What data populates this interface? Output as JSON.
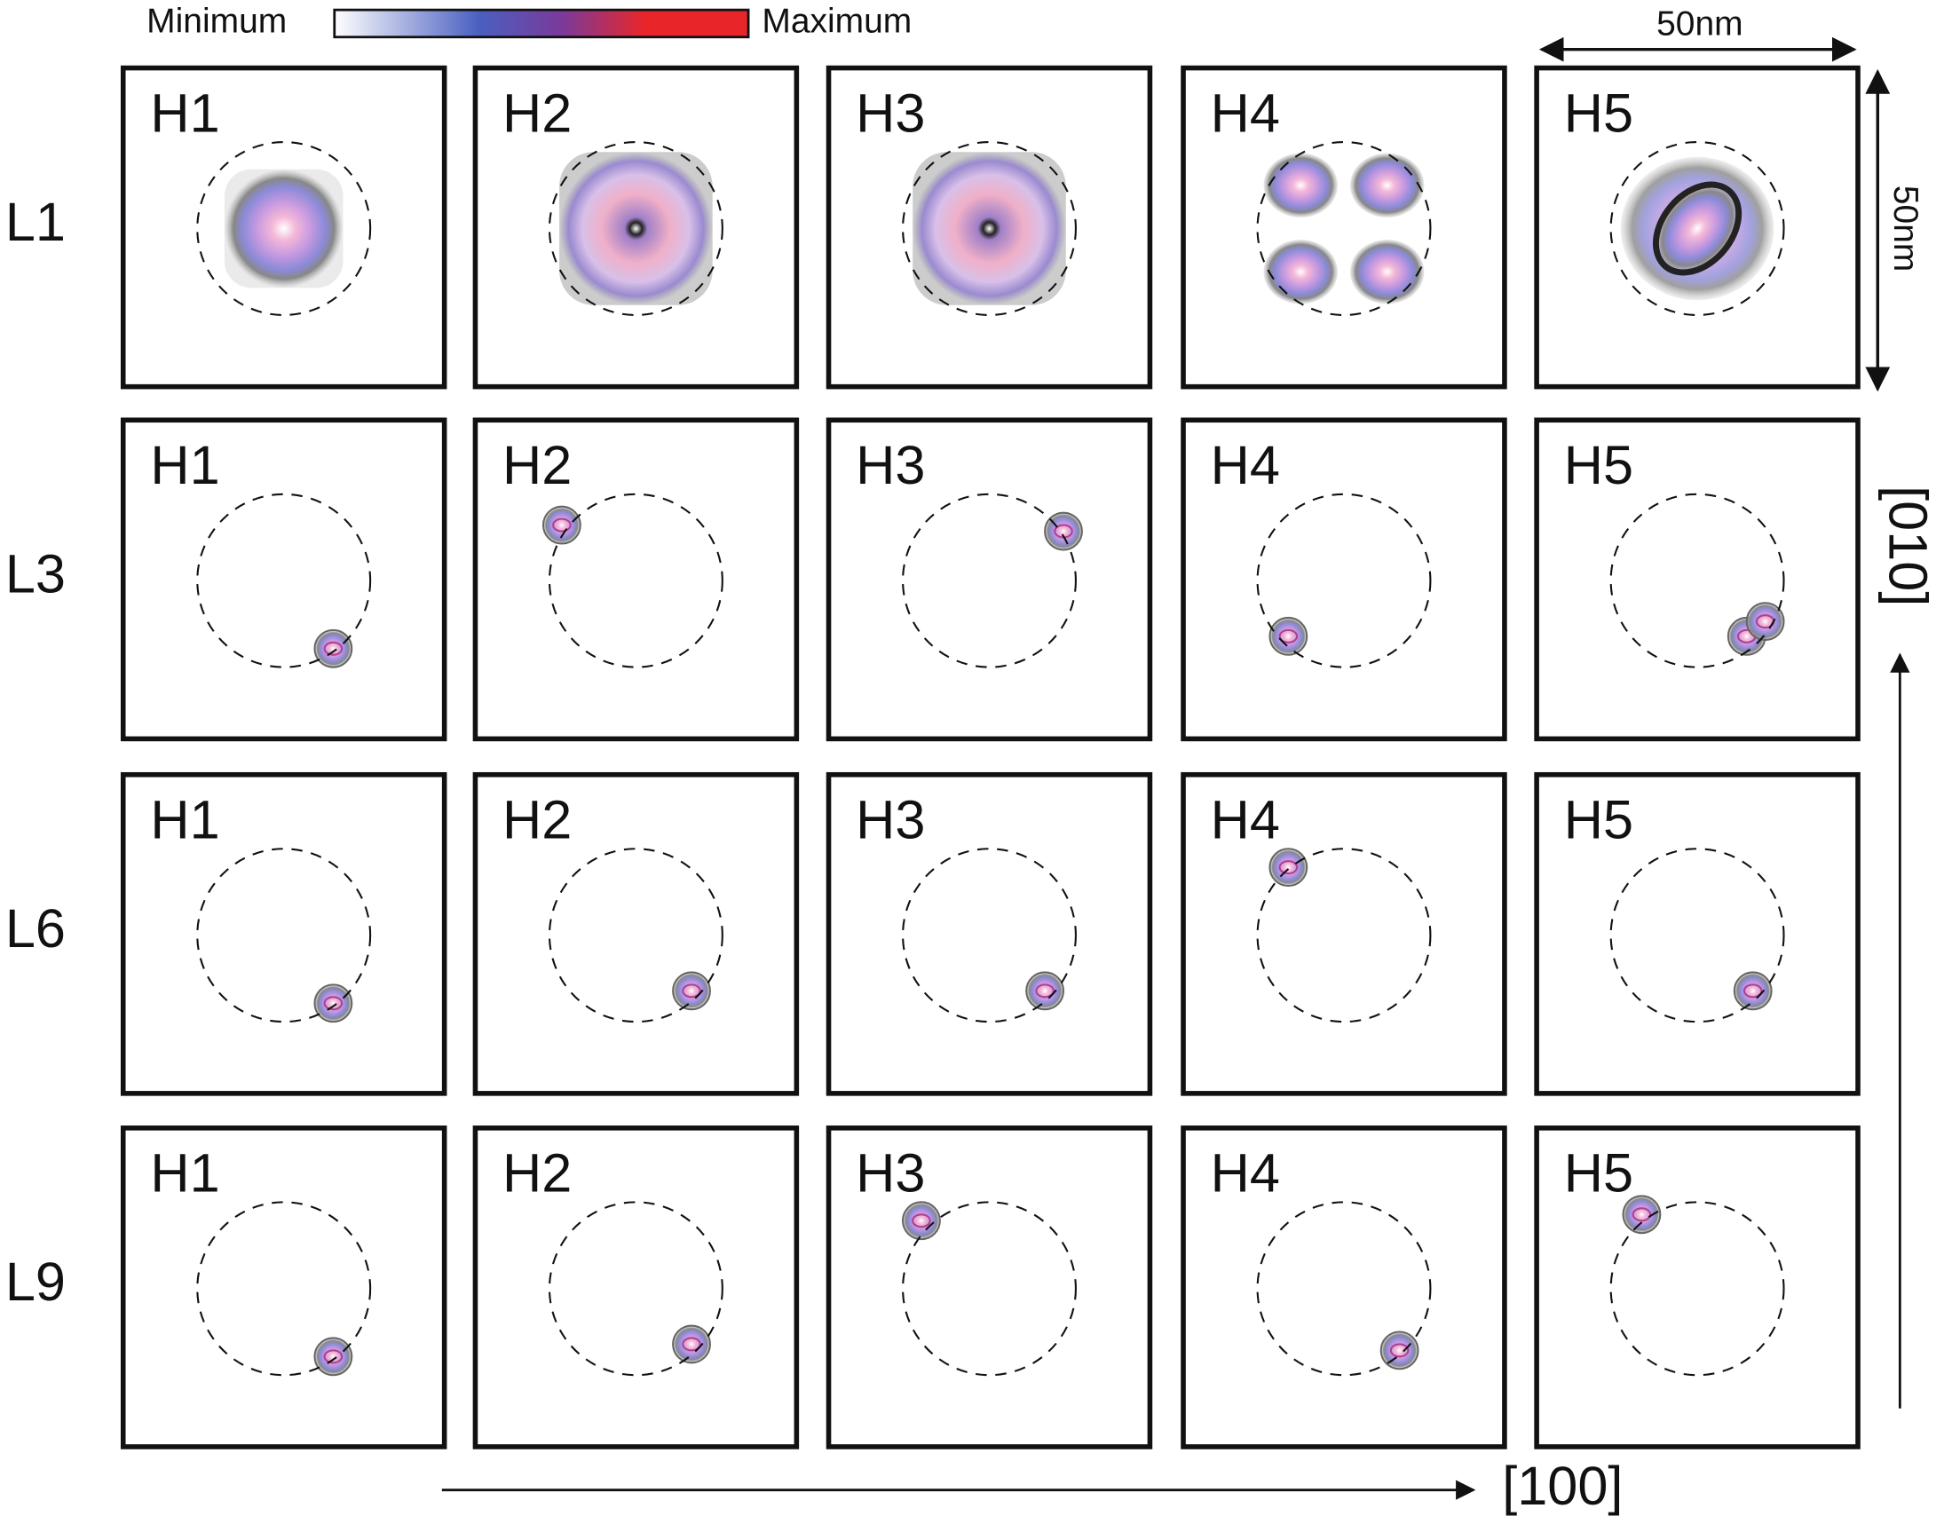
{
  "colorbar": {
    "min_label": "Minimum",
    "max_label": "Maximum"
  },
  "scale": {
    "horizontal": "50nm",
    "vertical": "50nm"
  },
  "rows": [
    {
      "label": "L1",
      "panels": [
        "H1",
        "H2",
        "H3",
        "H4",
        "H5"
      ]
    },
    {
      "label": "L3",
      "panels": [
        "H1",
        "H2",
        "H3",
        "H4",
        "H5"
      ]
    },
    {
      "label": "L6",
      "panels": [
        "H1",
        "H2",
        "H3",
        "H4",
        "H5"
      ]
    },
    {
      "label": "L9",
      "panels": [
        "H1",
        "H2",
        "H3",
        "H4",
        "H5"
      ]
    }
  ],
  "axes": {
    "x": "[100]",
    "y": "[010]"
  }
}
